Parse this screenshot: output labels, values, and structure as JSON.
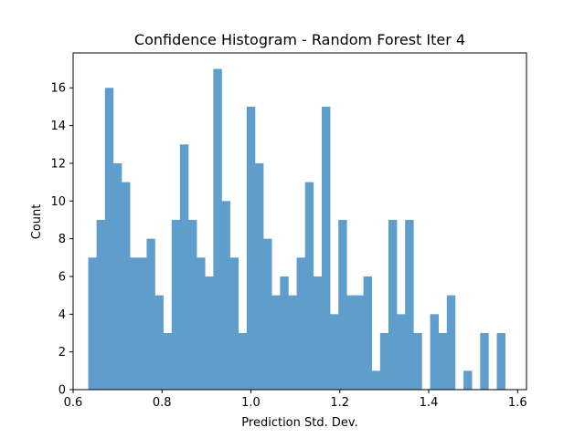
{
  "chart_data": {
    "type": "bar",
    "title": "Confidence Histogram - Random Forest Iter 4",
    "xlabel": "Prediction Std. Dev.",
    "ylabel": "Count",
    "xlim": [
      0.6,
      1.62
    ],
    "ylim": [
      0,
      17.85
    ],
    "x_ticks": [
      0.6,
      0.8,
      1.0,
      1.2,
      1.4,
      1.6
    ],
    "x_tick_labels": [
      "0.6",
      "0.8",
      "1.0",
      "1.2",
      "1.4",
      "1.6"
    ],
    "y_ticks": [
      0,
      2,
      4,
      6,
      8,
      10,
      12,
      14,
      16
    ],
    "y_tick_labels": [
      "0",
      "2",
      "4",
      "6",
      "8",
      "10",
      "12",
      "14",
      "16"
    ],
    "grid": false,
    "bar_color": "#5f9ecc",
    "bin_start": 0.634,
    "bin_width": 0.01876,
    "counts": [
      7,
      9,
      16,
      12,
      11,
      7,
      7,
      8,
      5,
      3,
      9,
      13,
      9,
      7,
      6,
      17,
      10,
      7,
      3,
      15,
      12,
      8,
      5,
      6,
      5,
      7,
      11,
      6,
      15,
      4,
      9,
      5,
      5,
      6,
      1,
      3,
      9,
      4,
      9,
      3,
      0,
      4,
      3,
      5,
      0,
      1,
      0,
      3,
      0,
      3
    ]
  }
}
